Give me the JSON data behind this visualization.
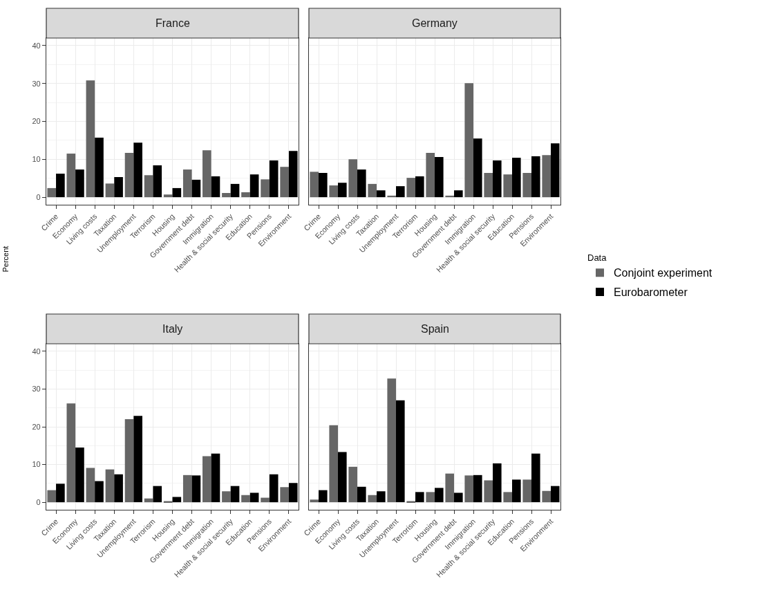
{
  "chart_data": [
    {
      "type": "bar",
      "title": "France",
      "ylabel": "Percent",
      "legend_title": "Data",
      "legend": "right",
      "grid": true,
      "categories": [
        "Crime",
        "Economy",
        "Living costs",
        "Taxation",
        "Unemployment",
        "Terrorism",
        "Housing",
        "Government debt",
        "Immigration",
        "Health & social security",
        "Education",
        "Pensions",
        "Environment"
      ],
      "ylim": [
        -2,
        42
      ],
      "yticks": [
        0,
        10,
        20,
        30,
        40
      ],
      "series": [
        {
          "name": "Conjoint experiment",
          "color": "#666666",
          "values": [
            2.4,
            11.5,
            30.8,
            3.6,
            11.7,
            5.8,
            0.7,
            7.3,
            12.4,
            1.1,
            1.3,
            4.7,
            8.0
          ]
        },
        {
          "name": "Eurobarometer",
          "color": "#000000",
          "values": [
            6.2,
            7.3,
            15.7,
            5.3,
            14.4,
            8.4,
            2.4,
            4.6,
            5.5,
            3.5,
            6.0,
            9.7,
            12.2
          ]
        }
      ]
    },
    {
      "type": "bar",
      "title": "Germany",
      "grid": true,
      "tick_labels": "x",
      "categories": [
        "Crime",
        "Economy",
        "Living costs",
        "Taxation",
        "Unemployment",
        "Terrorism",
        "Housing",
        "Government debt",
        "Immigration",
        "Health & social security",
        "Education",
        "Pensions",
        "Environment"
      ],
      "ylim": [
        -2,
        42
      ],
      "yticks": [
        0,
        10,
        20,
        30,
        40
      ],
      "series": [
        {
          "name": "Conjoint experiment",
          "color": "#666666",
          "values": [
            6.7,
            3.1,
            10.0,
            3.5,
            0.4,
            5.1,
            11.7,
            0.4,
            30.1,
            6.4,
            6.0,
            6.4,
            11.1
          ]
        },
        {
          "name": "Eurobarometer",
          "color": "#000000",
          "values": [
            6.4,
            3.8,
            7.3,
            1.8,
            2.9,
            5.5,
            10.6,
            1.8,
            15.5,
            9.7,
            10.4,
            10.8,
            14.2
          ]
        }
      ]
    },
    {
      "type": "bar",
      "title": "Italy",
      "grid": true,
      "categories": [
        "Crime",
        "Economy",
        "Living costs",
        "Taxation",
        "Unemployment",
        "Terrorism",
        "Housing",
        "Government debt",
        "Immigration",
        "Health & social security",
        "Education",
        "Pensions",
        "Environment"
      ],
      "ylim": [
        -2,
        42
      ],
      "yticks": [
        0,
        10,
        20,
        30,
        40
      ],
      "series": [
        {
          "name": "Conjoint experiment",
          "color": "#666666",
          "values": [
            3.2,
            26.2,
            9.1,
            8.7,
            22.0,
            1.0,
            0.3,
            7.2,
            12.2,
            2.9,
            1.9,
            1.2,
            4.0
          ]
        },
        {
          "name": "Eurobarometer",
          "color": "#000000",
          "values": [
            4.9,
            14.5,
            5.6,
            7.4,
            22.9,
            4.3,
            1.4,
            7.1,
            12.9,
            4.3,
            2.5,
            7.4,
            5.1
          ]
        }
      ]
    },
    {
      "type": "bar",
      "title": "Spain",
      "grid": true,
      "tick_labels": "x",
      "categories": [
        "Crime",
        "Economy",
        "Living costs",
        "Taxation",
        "Unemployment",
        "Terrorism",
        "Housing",
        "Government debt",
        "Immigration",
        "Health & social security",
        "Education",
        "Pensions",
        "Environment"
      ],
      "ylim": [
        -2,
        42
      ],
      "yticks": [
        0,
        10,
        20,
        30,
        40
      ],
      "series": [
        {
          "name": "Conjoint experiment",
          "color": "#666666",
          "values": [
            0.7,
            20.4,
            9.4,
            1.9,
            32.8,
            0.3,
            2.7,
            7.6,
            7.1,
            5.8,
            2.7,
            6.0,
            3.0
          ]
        },
        {
          "name": "Eurobarometer",
          "color": "#000000",
          "values": [
            3.2,
            13.3,
            4.1,
            2.9,
            27.0,
            2.7,
            3.8,
            2.5,
            7.2,
            10.3,
            6.0,
            12.9,
            4.3
          ]
        }
      ]
    }
  ]
}
